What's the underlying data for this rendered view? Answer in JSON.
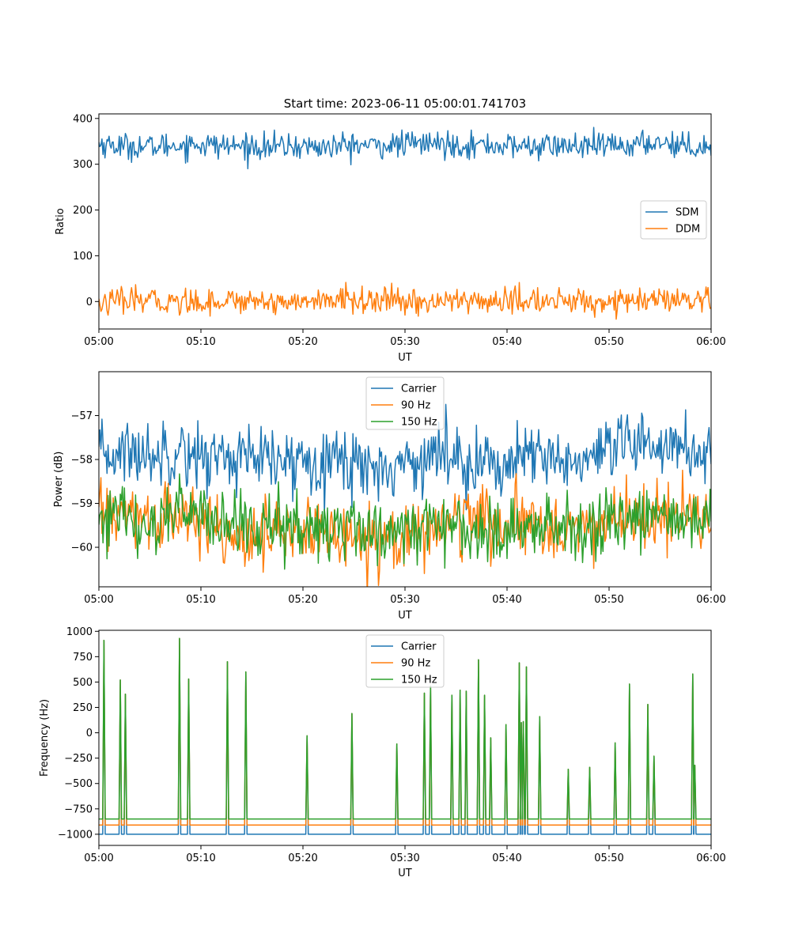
{
  "chart_data": [
    {
      "type": "line",
      "title": "Start time: 2023-06-11 05:00:01.741703",
      "xlabel": "UT",
      "ylabel": "Ratio",
      "xlim": [
        "05:00",
        "06:00"
      ],
      "ylim": [
        -60,
        410
      ],
      "xticks": [
        "05:00",
        "05:10",
        "05:20",
        "05:30",
        "05:40",
        "05:50",
        "06:00"
      ],
      "yticks": [
        0,
        100,
        200,
        300,
        400
      ],
      "legend_position": "center-right",
      "series": [
        {
          "name": "SDM",
          "color": "#1f77b4",
          "noise": "high",
          "x": [
            "05:00",
            "05:02",
            "05:05",
            "05:08",
            "05:10",
            "05:12",
            "05:15",
            "05:18",
            "05:20",
            "05:22",
            "05:25",
            "05:28",
            "05:30",
            "05:32",
            "05:35",
            "05:38",
            "05:40",
            "05:42",
            "05:45",
            "05:48",
            "05:50",
            "05:52",
            "05:55",
            "05:58",
            "06:00"
          ],
          "values": [
            345,
            340,
            338,
            342,
            344,
            340,
            339,
            338,
            339,
            337,
            342,
            340,
            344,
            346,
            343,
            341,
            340,
            339,
            340,
            338,
            341,
            340,
            350,
            338,
            340
          ]
        },
        {
          "name": "DDM",
          "color": "#ff7f0e",
          "noise": "high",
          "x": [
            "05:00",
            "05:02",
            "05:05",
            "05:08",
            "05:10",
            "05:12",
            "05:15",
            "05:18",
            "05:20",
            "05:22",
            "05:25",
            "05:28",
            "05:30",
            "05:32",
            "05:35",
            "05:38",
            "05:40",
            "05:42",
            "05:45",
            "05:48",
            "05:50",
            "05:52",
            "05:55",
            "05:58",
            "06:00"
          ],
          "values": [
            -5,
            0,
            2,
            -1,
            0,
            1,
            3,
            0,
            0,
            1,
            5,
            0,
            -2,
            0,
            2,
            0,
            0,
            1,
            0,
            0,
            1,
            0,
            2,
            0,
            0
          ]
        }
      ]
    },
    {
      "type": "line",
      "title": "",
      "xlabel": "UT",
      "ylabel": "Power (dB)",
      "xlim": [
        "05:00",
        "06:00"
      ],
      "ylim": [
        -60.9,
        -56.0
      ],
      "xticks": [
        "05:00",
        "05:10",
        "05:20",
        "05:30",
        "05:40",
        "05:50",
        "06:00"
      ],
      "yticks": [
        -57,
        -58,
        -59,
        -60
      ],
      "legend_position": "upper-center",
      "series": [
        {
          "name": "Carrier",
          "color": "#1f77b4",
          "noise": "medium",
          "x": [
            "05:00",
            "05:02",
            "05:05",
            "05:08",
            "05:10",
            "05:12",
            "05:15",
            "05:18",
            "05:20",
            "05:22",
            "05:25",
            "05:28",
            "05:30",
            "05:32",
            "05:35",
            "05:38",
            "05:40",
            "05:42",
            "05:45",
            "05:48",
            "05:50",
            "05:52",
            "05:55",
            "05:58",
            "06:00"
          ],
          "values": [
            -58.0,
            -57.8,
            -57.9,
            -57.7,
            -58.0,
            -57.9,
            -58.0,
            -58.1,
            -58.0,
            -57.9,
            -58.1,
            -58.2,
            -58.1,
            -57.9,
            -57.9,
            -58.1,
            -58.1,
            -58.0,
            -58.0,
            -58.1,
            -57.9,
            -57.7,
            -57.6,
            -57.8,
            -57.8
          ]
        },
        {
          "name": "90 Hz",
          "color": "#ff7f0e",
          "noise": "medium",
          "x": [
            "05:00",
            "05:02",
            "05:05",
            "05:08",
            "05:10",
            "05:12",
            "05:15",
            "05:18",
            "05:20",
            "05:22",
            "05:25",
            "05:28",
            "05:30",
            "05:32",
            "05:35",
            "05:38",
            "05:40",
            "05:42",
            "05:45",
            "05:48",
            "05:50",
            "05:52",
            "05:55",
            "05:58",
            "06:00"
          ],
          "values": [
            -59.2,
            -59.3,
            -59.4,
            -59.3,
            -59.5,
            -59.6,
            -59.7,
            -59.7,
            -59.6,
            -59.7,
            -59.8,
            -59.7,
            -59.8,
            -59.6,
            -59.4,
            -59.4,
            -59.6,
            -59.5,
            -59.5,
            -59.6,
            -59.4,
            -59.3,
            -59.4,
            -59.3,
            -59.3
          ]
        },
        {
          "name": "150 Hz",
          "color": "#2ca02c",
          "noise": "medium",
          "x": [
            "05:00",
            "05:02",
            "05:05",
            "05:08",
            "05:10",
            "05:12",
            "05:15",
            "05:18",
            "05:20",
            "05:22",
            "05:25",
            "05:28",
            "05:30",
            "05:32",
            "05:35",
            "05:38",
            "05:40",
            "05:42",
            "05:45",
            "05:48",
            "05:50",
            "05:52",
            "05:55",
            "05:58",
            "06:00"
          ],
          "values": [
            -59.3,
            -59.4,
            -59.5,
            -59.2,
            -59.2,
            -59.4,
            -59.6,
            -59.6,
            -59.5,
            -59.6,
            -59.5,
            -59.7,
            -59.6,
            -59.5,
            -59.5,
            -59.6,
            -59.5,
            -59.5,
            -59.4,
            -59.6,
            -59.3,
            -59.4,
            -59.3,
            -59.5,
            -59.3
          ]
        }
      ]
    },
    {
      "type": "line",
      "title": "",
      "xlabel": "UT",
      "ylabel": "Frequency (Hz)",
      "xlim": [
        "05:00",
        "06:00"
      ],
      "ylim": [
        -1110,
        1010
      ],
      "xticks": [
        "05:00",
        "05:10",
        "05:20",
        "05:30",
        "05:40",
        "05:50",
        "06:00"
      ],
      "yticks": [
        1000,
        750,
        500,
        250,
        0,
        -250,
        -500,
        -750,
        -1000
      ],
      "legend_position": "upper-center",
      "spike_times": [
        "05:00:30",
        "05:02:06",
        "05:02:36",
        "05:07:54",
        "05:08:48",
        "05:12:36",
        "05:14:24",
        "05:20:24",
        "05:24:48",
        "05:29:12",
        "05:31:54",
        "05:32:30",
        "05:34:36",
        "05:35:24",
        "05:36:00",
        "05:37:12",
        "05:37:48",
        "05:38:24",
        "05:39:54",
        "05:41:12",
        "05:41:24",
        "05:41:36",
        "05:41:54",
        "05:43:12",
        "05:46:00",
        "05:48:06",
        "05:50:36",
        "05:52:00",
        "05:53:48",
        "05:54:24",
        "05:58:12",
        "05:58:24"
      ],
      "spike_peaks": [
        910,
        520,
        380,
        930,
        530,
        700,
        600,
        -30,
        190,
        -110,
        390,
        460,
        370,
        420,
        410,
        720,
        370,
        -50,
        80,
        690,
        100,
        110,
        650,
        160,
        -360,
        -340,
        -100,
        480,
        280,
        -230,
        580,
        -320
      ],
      "series": [
        {
          "name": "Carrier",
          "color": "#1f77b4",
          "baseline": -1000
        },
        {
          "name": "90 Hz",
          "color": "#ff7f0e",
          "baseline": -910
        },
        {
          "name": "150 Hz",
          "color": "#2ca02c",
          "baseline": -850
        }
      ]
    }
  ]
}
